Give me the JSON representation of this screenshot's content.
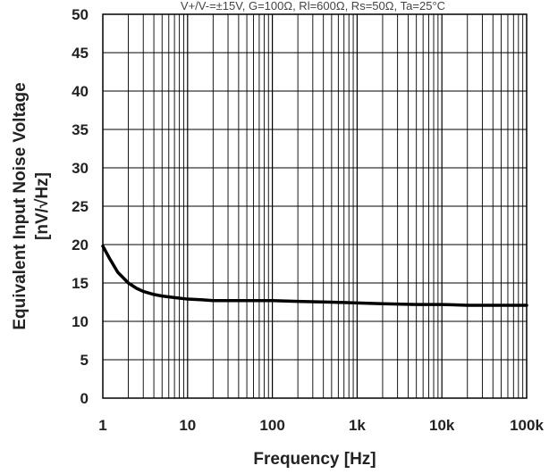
{
  "chart_data": {
    "type": "line",
    "title": "",
    "top_note": "V+/V-=±15V, G=100Ω, Rl=600Ω, Rs=50Ω, Ta=25°C",
    "xlabel": "Frequency [Hz]",
    "ylabel_line1": "Equivalent Input Noise Voltage",
    "ylabel_line2": "[nV/√Hz]",
    "x_scale": "log",
    "xlim": [
      1,
      100000
    ],
    "ylim": [
      0,
      50
    ],
    "grid": true,
    "x_ticks": [
      {
        "value": 1,
        "label": "1"
      },
      {
        "value": 10,
        "label": "10"
      },
      {
        "value": 100,
        "label": "100"
      },
      {
        "value": 1000,
        "label": "1k"
      },
      {
        "value": 10000,
        "label": "10k"
      },
      {
        "value": 100000,
        "label": "100k"
      }
    ],
    "y_ticks": [
      0,
      5,
      10,
      15,
      20,
      25,
      30,
      35,
      40,
      45,
      50
    ],
    "series": [
      {
        "color": "#000000",
        "x": [
          1,
          1.2,
          1.5,
          2,
          2.5,
          3,
          4,
          5,
          7,
          10,
          15,
          20,
          30,
          50,
          100,
          200,
          500,
          1000,
          2000,
          5000,
          10000,
          20000,
          50000,
          100000
        ],
        "y": [
          19.8,
          18.2,
          16.4,
          15.0,
          14.3,
          13.9,
          13.5,
          13.3,
          13.1,
          12.9,
          12.8,
          12.7,
          12.7,
          12.7,
          12.7,
          12.6,
          12.5,
          12.4,
          12.3,
          12.2,
          12.2,
          12.1,
          12.1,
          12.1
        ]
      }
    ]
  }
}
